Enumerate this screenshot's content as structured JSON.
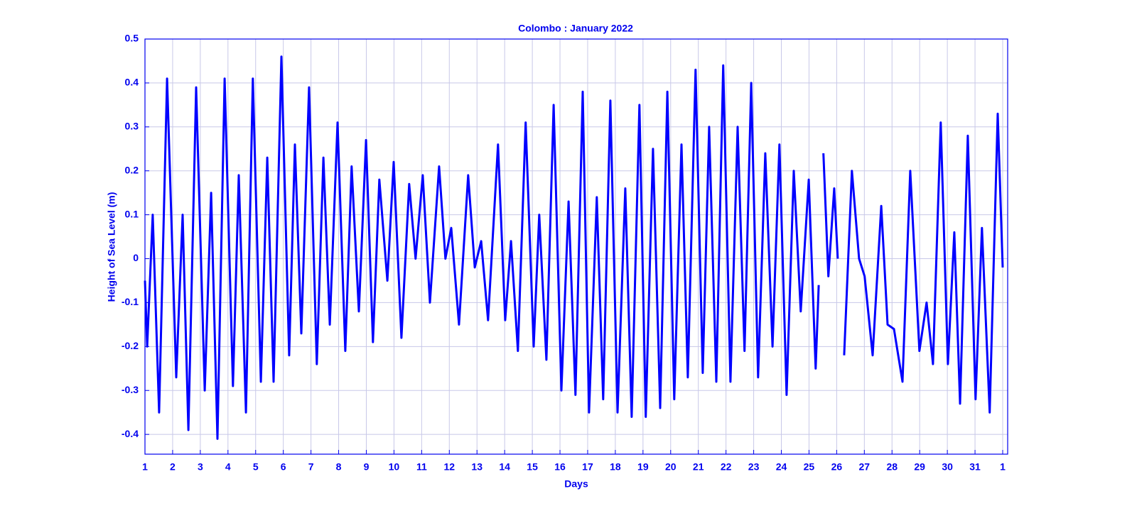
{
  "chart_data": {
    "type": "line",
    "title": "Colombo  : January 2022",
    "x_label": "Days",
    "y_label": "Height of Sea Level (m)",
    "xlim": [
      1,
      32.18
    ],
    "ylim": [
      -0.445,
      0.5
    ],
    "xticks": [
      1,
      2,
      3,
      4,
      5,
      6,
      7,
      8,
      9,
      10,
      11,
      12,
      13,
      14,
      15,
      16,
      17,
      18,
      19,
      20,
      21,
      22,
      23,
      24,
      25,
      26,
      27,
      28,
      29,
      30,
      31,
      {
        "value": 32,
        "label": "1"
      }
    ],
    "yticks": [
      -0.4,
      -0.3,
      -0.2,
      -0.1,
      0,
      0.1,
      0.2,
      0.3,
      0.4,
      0.5
    ],
    "grid": true,
    "series": [
      {
        "name": "Sea level",
        "color": "#0000ff",
        "x": [
          1.0,
          1.08,
          1.28,
          1.51,
          1.8,
          2.13,
          2.36,
          2.57,
          2.85,
          3.16,
          3.39,
          3.62,
          3.88,
          4.18,
          4.39,
          4.65,
          4.9,
          5.19,
          5.42,
          5.65,
          5.93,
          6.21,
          6.42,
          6.65,
          6.93,
          7.21,
          7.45,
          7.68,
          7.96,
          8.24,
          8.47,
          8.73,
          8.99,
          9.24,
          9.47,
          9.76,
          9.99,
          10.27,
          10.55,
          10.78,
          11.04,
          11.3,
          11.63,
          11.86,
          12.07,
          12.35,
          12.68,
          12.92,
          13.15,
          13.4,
          13.76,
          14.02,
          14.23,
          14.48,
          14.76,
          15.05,
          15.25,
          15.51,
          15.77,
          16.05,
          16.31,
          16.56,
          16.82,
          17.05,
          17.33,
          17.56,
          17.82,
          18.08,
          18.36,
          18.59,
          18.87,
          19.1,
          19.36,
          19.62,
          19.88,
          20.13,
          20.39,
          20.62,
          20.9,
          21.16,
          21.39,
          21.65,
          21.9,
          22.16,
          22.42,
          22.67,
          22.91,
          23.16,
          23.42,
          23.68,
          23.93,
          24.19,
          24.45,
          24.7,
          24.99,
          25.24,
          25.35,
          25.45,
          25.52,
          25.7,
          25.91,
          26.04,
          26.2,
          26.27,
          26.55,
          26.81,
          27.01,
          27.3,
          27.61,
          27.84,
          28.07,
          28.38,
          28.66,
          28.99,
          29.25,
          29.48,
          29.76,
          30.02,
          30.25,
          30.46,
          30.74,
          31.02,
          31.25,
          31.53,
          31.82,
          32.0
        ],
        "values": [
          -0.05,
          -0.2,
          0.1,
          -0.35,
          0.41,
          -0.27,
          0.1,
          -0.39,
          0.39,
          -0.3,
          0.15,
          -0.41,
          0.41,
          -0.29,
          0.19,
          -0.35,
          0.41,
          -0.28,
          0.23,
          -0.28,
          0.46,
          -0.22,
          0.26,
          -0.17,
          0.39,
          -0.24,
          0.23,
          -0.15,
          0.31,
          -0.21,
          0.21,
          -0.12,
          0.27,
          -0.19,
          0.18,
          -0.05,
          0.22,
          -0.18,
          0.17,
          0,
          0.19,
          -0.1,
          0.21,
          0,
          0.07,
          -0.15,
          0.19,
          -0.02,
          0.04,
          -0.14,
          0.26,
          -0.14,
          0.04,
          -0.21,
          0.31,
          -0.2,
          0.1,
          -0.23,
          0.35,
          -0.3,
          0.13,
          -0.31,
          0.38,
          -0.35,
          0.14,
          -0.32,
          0.36,
          -0.35,
          0.16,
          -0.36,
          0.35,
          -0.36,
          0.25,
          -0.34,
          0.38,
          -0.32,
          0.26,
          -0.27,
          0.43,
          -0.26,
          0.3,
          -0.28,
          0.44,
          -0.28,
          0.3,
          -0.21,
          0.4,
          -0.27,
          0.24,
          -0.2,
          0.26,
          -0.31,
          0.2,
          -0.12,
          0.18,
          -0.25,
          -0.06,
          null,
          0.24,
          -0.04,
          0.16,
          0,
          null,
          -0.22,
          0.2,
          0,
          -0.04,
          -0.22,
          0.12,
          -0.15,
          -0.16,
          -0.28,
          0.2,
          -0.21,
          -0.1,
          -0.24,
          0.31,
          -0.24,
          0.06,
          -0.33,
          0.28,
          -0.32,
          0.07,
          -0.35,
          0.33,
          -0.02
        ]
      }
    ]
  }
}
